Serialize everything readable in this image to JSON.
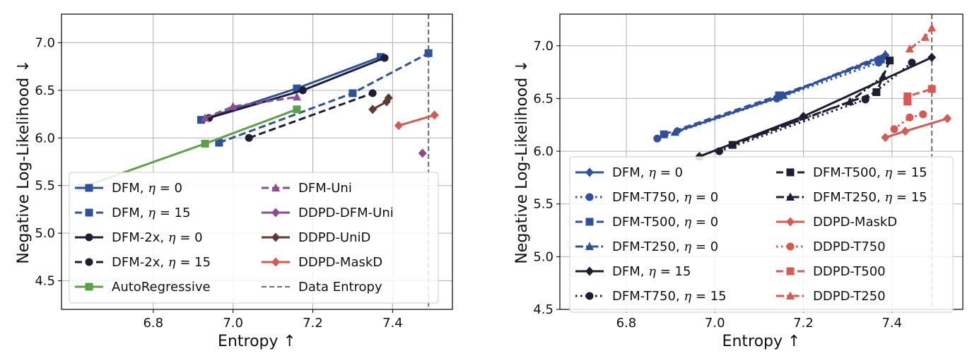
{
  "colors": {
    "blue": "#2f4f9f",
    "black": "#1c1f33",
    "purple": "#8b4c94",
    "brown": "#5e3a2e",
    "red": "#d65a51",
    "green": "#5da04a",
    "gray": "#777777"
  },
  "chart_data": [
    {
      "type": "line",
      "xlabel": "Entropy ↑",
      "ylabel": "Negative Log-Likelihood ↓",
      "xlim": [
        6.57,
        7.55
      ],
      "ylim": [
        4.2,
        7.3
      ],
      "xticks": [
        "6.8",
        "7.0",
        "7.2",
        "7.4"
      ],
      "yticks": [
        "4.5",
        "5.0",
        "5.5",
        "6.0",
        "6.5",
        "7.0"
      ],
      "grid": true,
      "legend_location": "lower-left",
      "legend_columns": 2,
      "vline": {
        "x": 7.49,
        "name": "Data Entropy"
      },
      "series": [
        {
          "name": "DFM, η = 0",
          "label_main": "DFM, ",
          "eta": "0",
          "color": "blue",
          "dash": "solid",
          "marker": "square",
          "x": [
            6.92,
            7.16,
            7.37
          ],
          "y": [
            6.19,
            6.52,
            6.85
          ]
        },
        {
          "name": "DFM, η = 15",
          "label_main": "DFM, ",
          "eta": "15",
          "color": "blue",
          "dash": "dashed",
          "marker": "square",
          "x": [
            6.965,
            7.3,
            7.49
          ],
          "y": [
            5.95,
            6.47,
            6.89
          ]
        },
        {
          "name": "DFM-2x, η = 0",
          "label_main": "DFM-2x, ",
          "eta": "0",
          "color": "black",
          "dash": "solid",
          "marker": "circle",
          "x": [
            6.94,
            7.175,
            7.38
          ],
          "y": [
            6.21,
            6.5,
            6.84
          ]
        },
        {
          "name": "DFM-2x, η = 15",
          "label_main": "DFM-2x, ",
          "eta": "15",
          "color": "black",
          "dash": "dashed",
          "marker": "circle",
          "x": [
            7.04,
            7.35
          ],
          "y": [
            6.0,
            6.47
          ]
        },
        {
          "name": "AutoRegressive",
          "label_main": "AutoRegressive",
          "eta": "",
          "color": "green",
          "dash": "solid",
          "marker": "square",
          "x": [
            6.62,
            6.93,
            7.16
          ],
          "y": [
            5.48,
            5.94,
            6.3
          ]
        },
        {
          "name": "DFM-Uni",
          "label_main": "DFM-Uni",
          "eta": "",
          "color": "purple",
          "dash": "dashed",
          "marker": "triangle",
          "x": [
            6.93,
            7.0,
            7.16
          ],
          "y": [
            6.21,
            6.33,
            6.43
          ]
        },
        {
          "name": "DDPD-DFM-Uni",
          "label_main": "DDPD-DFM-Uni",
          "eta": "",
          "color": "purple",
          "dash": "solid",
          "marker": "diamond",
          "x": [
            7.475
          ],
          "y": [
            5.84
          ]
        },
        {
          "name": "DDPD-UniD",
          "label_main": "DDPD-UniD",
          "eta": "",
          "color": "brown",
          "dash": "solid",
          "marker": "diamond",
          "x": [
            7.35,
            7.385,
            7.39
          ],
          "y": [
            6.3,
            6.38,
            6.42
          ]
        },
        {
          "name": "DDPD-MaskD",
          "label_main": "DDPD-MaskD",
          "eta": "",
          "color": "red",
          "dash": "solid",
          "marker": "diamond",
          "x": [
            7.415,
            7.505
          ],
          "y": [
            6.13,
            6.24
          ]
        }
      ],
      "legend_order": [
        0,
        5,
        1,
        6,
        2,
        7,
        3,
        8,
        4,
        "vline"
      ]
    },
    {
      "type": "line",
      "xlabel": "Entropy ↑",
      "ylabel": "Negative Log-Likelihood ↓",
      "xlim": [
        6.65,
        7.56
      ],
      "ylim": [
        4.5,
        7.3
      ],
      "xticks": [
        "6.8",
        "7.0",
        "7.2",
        "7.4"
      ],
      "yticks": [
        "4.5",
        "5.0",
        "5.5",
        "6.0",
        "6.5",
        "7.0"
      ],
      "grid": true,
      "legend_location": "lower-left",
      "legend_columns": 2,
      "vline": {
        "x": 7.49,
        "name": ""
      },
      "series": [
        {
          "name": "DFM, η = 0",
          "label_main": "DFM, ",
          "eta": "0",
          "color": "blue",
          "dash": "solid",
          "marker": "diamond",
          "x": [
            6.915,
            7.15,
            7.385
          ],
          "y": [
            6.19,
            6.52,
            6.91
          ]
        },
        {
          "name": "DFM-T750, η = 0",
          "label_main": "DFM-T750, ",
          "eta": "0",
          "color": "blue",
          "dash": "dotted",
          "marker": "circle",
          "x": [
            6.87,
            7.14,
            7.37
          ],
          "y": [
            6.12,
            6.5,
            6.84
          ]
        },
        {
          "name": "DFM-T500, η = 0",
          "label_main": "DFM-T500, ",
          "eta": "0",
          "color": "blue",
          "dash": "dashed",
          "marker": "square",
          "x": [
            6.885,
            7.145,
            7.375
          ],
          "y": [
            6.16,
            6.53,
            6.87
          ]
        },
        {
          "name": "DFM-T250, η = 0",
          "label_main": "DFM-T250, ",
          "eta": "0",
          "color": "blue",
          "dash": "dashdot",
          "marker": "triangle",
          "x": [
            6.91,
            7.155,
            7.385
          ],
          "y": [
            6.18,
            6.53,
            6.92
          ]
        },
        {
          "name": "DFM, η = 15",
          "label_main": "DFM, ",
          "eta": "15",
          "color": "black",
          "dash": "solid",
          "marker": "diamond",
          "x": [
            6.965,
            7.2,
            7.49
          ],
          "y": [
            5.95,
            6.33,
            6.89
          ]
        },
        {
          "name": "DFM-T750, η = 15",
          "label_main": "DFM-T750, ",
          "eta": "15",
          "color": "black",
          "dash": "dotted",
          "marker": "circle",
          "x": [
            7.01,
            7.34,
            7.445
          ],
          "y": [
            6.0,
            6.49,
            6.84
          ]
        },
        {
          "name": "DFM-T500, η = 15",
          "label_main": "DFM-T500, ",
          "eta": "15",
          "color": "black",
          "dash": "dashed",
          "marker": "square",
          "x": [
            7.04,
            7.365,
            7.395
          ],
          "y": [
            6.06,
            6.56,
            6.86
          ]
        },
        {
          "name": "DFM-T250, η = 15",
          "label_main": "DFM-T250, ",
          "eta": "15",
          "color": "black",
          "dash": "dashdot",
          "marker": "triangle",
          "x": [
            6.965,
            7.305,
            7.38
          ],
          "y": [
            5.95,
            6.47,
            6.71
          ]
        },
        {
          "name": "DDPD-MaskD",
          "label_main": "DDPD-MaskD",
          "eta": "",
          "color": "red",
          "dash": "solid",
          "marker": "diamond",
          "x": [
            7.385,
            7.43,
            7.525
          ],
          "y": [
            6.13,
            6.19,
            6.31
          ]
        },
        {
          "name": "DDPD-T750",
          "label_main": "DDPD-T750",
          "eta": "",
          "color": "red",
          "dash": "dotted",
          "marker": "circle",
          "x": [
            7.405,
            7.44,
            7.47
          ],
          "y": [
            6.21,
            6.32,
            6.35
          ]
        },
        {
          "name": "DDPD-T500",
          "label_main": "DDPD-T500",
          "eta": "",
          "color": "red",
          "dash": "dashed",
          "marker": "square",
          "x": [
            7.435,
            7.435,
            7.49
          ],
          "y": [
            6.47,
            6.52,
            6.59
          ]
        },
        {
          "name": "DDPD-T250",
          "label_main": "DDPD-T250",
          "eta": "",
          "color": "red",
          "dash": "dashdot",
          "marker": "triangle",
          "x": [
            7.44,
            7.475,
            7.49
          ],
          "y": [
            6.97,
            7.08,
            7.17
          ]
        }
      ],
      "legend_order": [
        0,
        6,
        1,
        7,
        2,
        8,
        3,
        9,
        4,
        10,
        5,
        11
      ]
    }
  ]
}
